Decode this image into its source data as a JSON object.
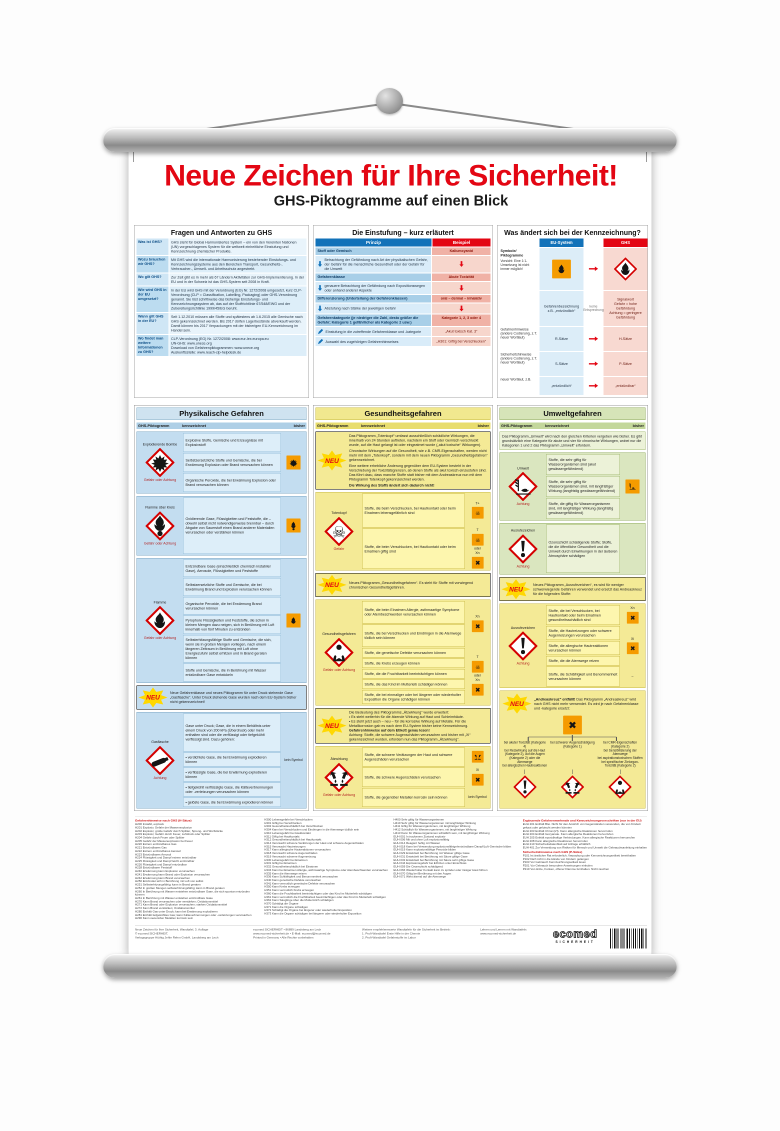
{
  "colors": {
    "accent_red": "#e30613",
    "eu_blue": "#1272b9",
    "old_symbol_orange": "#f59b00",
    "ghs_diamond_red": "#d40000",
    "neu_yellow": "#ffd800"
  },
  "poster": {
    "title": "Neue Zeichen für Ihre Sicherheit!",
    "subtitle": "GHS-Piktogramme auf einen Blick"
  },
  "heads": {
    "picto": "GHS-Piktogramm",
    "kenn": "kennzeichnet",
    "bisher": "bisher"
  },
  "faq": {
    "title": "Fragen und Antworten zu GHS",
    "rows": [
      {
        "q": "Was ist GHS?",
        "a": "GHS steht für Global Harmonisiertes System – ein von den Vereinten Nationen (UN) vorgeschlagenes System für die weltweit einheitliche Einstufung und Kennzeichnung chemischer Produkte."
      },
      {
        "q": "Wozu brauchen wir GHS?",
        "a": "Mit GHS wird die internationale Harmonisierung bestehender Einstufungs- und Kennzeichnungssysteme aus den Bereichen Transport, Gesundheits-, Verbraucher-, Umwelt- und Arbeitsschutz angestrebt."
      },
      {
        "q": "Wo gilt GHS?",
        "a": "Zur Zeit gibt es in mehr als 67 Ländern Aktivitäten zur GHS-Implementierung. In der EU und in der Schweiz ist das GHS-System seit 2008 in Kraft."
      },
      {
        "q": "Wie wird GHS in der EU umgesetzt?",
        "a": "In der EU wird GHS mit der Verordnung (EG) Nr. 1272/2008 umgesetzt, kurz CLP-Verordnung (CLP = Classification, Labelling, Packaging) oder GHS-Verordnung genannt. Sie löst schrittweise das bisherige Einstufungs- und Kennzeichnungssystem ab, das auf der Stoffrichtlinie 67/548/EWG und der Zubereitungsrichtlinie 1999/45/EG beruht."
      },
      {
        "q": "Wann gilt GHS in der EU?",
        "a": "Seit 1.12.2010 müssen alle Stoffe und spätestens ab 1.6.2015 alle Gemische nach GHS gekennzeichnet werden. Bis 2017 dürfen Lagerbestände abverkauft werden. Damit können bis 2017 Verpackungen mit der bisherigen EU-Kennzeichnung im Handel sein."
      },
      {
        "q": "Wo findet man weitere Informationen zu GHS?",
        "a": "CLP-Verordnung (EG) Nr. 1272/2008: www.eur-lex.europa.eu\nUN-GHS: www.unece.org\nDownload von Gefahrenpiktogrammen: www.unece.org\nAuskunftsstelle: www.reach-clp-helpdesk.de"
      }
    ]
  },
  "einstufung": {
    "title": "Die Einstufung – kurz erläutert",
    "col_p": "Prinzip",
    "col_b": "Beispiel",
    "r1l": "Stoff oder Gemisch",
    "r1r": "Kaliumcyanid",
    "r2l": "Betrachtung der Gefährdung nach Art der physikalischen Gefahr, der Gefahr für die menschliche Gesundheit oder der Gefahr für die Umwelt",
    "r3l": "Gefahrenklasse",
    "r3r": "Akute Toxizität",
    "r4l": "genauere Betrachtung der Gefährdung nach Expositionswegen oder anhand anderer Aspekte",
    "r5l": "Differenzierung (Unterteilung der Gefahrenklassen)",
    "r5r": "oral – dermal – inhalativ",
    "r6l": "Abstufung nach Stärke der jeweiligen Gefahr",
    "r7l": "Gefahrenkategorie (je niedriger die Zahl, desto größer die Gefahr; Kategorie 1 gefährlicher als Kategorie 2 usw.)",
    "r7r": "Kategorie 1, 2, 3 oder 4",
    "r8l": "Einstufung in die zutreffende Gefahrenklasse und -kategorie",
    "r8r": "„Akut toxisch Kat. 3“",
    "r9l": "Auswahl des zugehörigen Gefahrenhinweises",
    "r9r": "„H301: Giftig bei Verschlucken“"
  },
  "kennzeichnung": {
    "title": "Was ändert sich bei der Kennzeichnung?",
    "col_eu": "EU-System",
    "col_ghs": "GHS",
    "r1_label": "Symbole/\nPiktogramme",
    "r1_note": "Vorsicht: Eine 1:1-Umsetzung ist nicht immer möglich!",
    "r2_eu": "Gefahrenbezeichnung z.B. „entzündlich“",
    "r2_mid": "keine Entsprechung",
    "r2_ghs": "Signalwort\nGefahr = hohe Gefährdung\nAchtung = geringere Gefährdung",
    "r3_label": "Gefahrenhinweise (andere Codierung, z.T. neuer Wortlaut)",
    "r3_eu": "R-Sätze",
    "r3_ghs": "H-Sätze",
    "r4_label": "Sicherheitshinweise (andere Codierung, z.T. neuer Wortlaut)",
    "r4_eu": "S-Sätze",
    "r4_ghs": "P-Sätze",
    "r5_label": "neuer Wortlaut, z.B.",
    "r5_eu": "„entzündlich“",
    "r5_ghs": "„entzündbar“"
  },
  "phys": {
    "title": "Physikalische Gefahren",
    "b1": {
      "name": "Explodierende Bombe",
      "signal": "Gefahr oder Achtung",
      "rows": [
        "Explosive Stoffe, Gemische und Erzeugnisse mit Explosivstoff",
        "Selbstzersetzliche Stoffe und Gemische, die bei Erwärmung Explosion oder Brand verursachen können",
        "Organische Peroxide, die bei Erwärmung Explosion oder Brand verursachen können"
      ]
    },
    "b2": {
      "name": "Flamme über Kreis",
      "signal": "Gefahr oder Achtung",
      "rows": [
        "Oxidierende Gase, Flüssigkeiten und Feststoffe, die – obwohl selbst nicht notwendigerweise brennbar – durch Abgabe von Sauerstoff einen Brand anderer Materialien verursachen oder verstärken können"
      ]
    },
    "b3": {
      "name": "Flamme",
      "signal": "Gefahr oder Achtung",
      "rows": [
        "Entzündbare Gase (einschließlich chemisch instabiler Gase), Aerosole, Flüssigkeiten und Feststoffe",
        "Selbstzersetzliche Stoffe und Gemische, die bei Erwärmung Brand und Explosion verursachen können",
        "Organische Peroxide, die bei Erwärmung Brand verursachen können",
        "Pyrophore Flüssigkeiten und Feststoffe, die schon in kleinen Mengen dazu neigen, sich in Berührung mit Luft innerhalb von fünf Minuten zu entzünden",
        "Selbsterhitzungsfähige Stoffe und Gemische, die sich, wenn sie in großen Mengen vorliegen, nach einem längeren Zeitraum in Berührung mit Luft ohne Energiezufuhr selbst erhitzen und in Brand geraten können",
        "Stoffe und Gemische, die in Berührung mit Wasser entzündbare Gase entwickeln"
      ]
    },
    "neu": "Neue Gefahrenklasse und neues Piktogramm für unter Druck stehende Gase „Gasflasche“. Unter Druck stehende Gase wurden nach dem EU-System bisher nicht gekennzeichnet!",
    "b4": {
      "name": "Gasflasche",
      "signal": "Achtung",
      "intro": "Gase unter Druck; Gase, die in einem Behältnis unter einem Druck von 200 kPa (Überdruck) oder mehr enthalten sind oder die verflüssigt oder tiefgekühlt verflüssigt sind. Dazu gehören:",
      "rows": [
        "• verdichtete Gase, die bei Erwärmung explodieren können",
        "• verflüssigte Gase, die bei Erwärmung explodieren können",
        "• tiefgekühlt verflüssigte Gase, die Kälteverbrennungen oder -verletzungen verursachen können",
        "• gelöste Gase, die bei Erwärmung explodieren können"
      ],
      "bisher": "kein Symbol"
    }
  },
  "health": {
    "title": "Gesundheitsgefahren",
    "neu1": {
      "lines": [
        "Das Piktogramm „Totenkopf“ umfasst ausschließlich schädliche Wirkungen, die innerhalb von 24 Stunden auftreten, nachdem ein Stoff oder Gemisch verschluckt wurde, auf die Haut gelangt ist oder eingeatmet wurde („akut toxische“ Wirkungen).",
        "Chronische Wirkungen auf die Gesundheit, wie z.B. CMR-Eigenschaften, werden nicht mehr mit dem „Totenkopf“, sondern mit dem neuen Piktogramm „Gesundheitsgefahren“ gekennzeichnet.",
        "Eine weitere erhebliche Änderung gegenüber dem EU-System besteht in der Verschiebung der Toxizitätsgrenzen, ab denen Stoffe als akut toxisch einzustufen sind. Das führt dazu, dass manche Stoffe statt bisher mit dem Andreaskreuz nun mit dem Piktogramm Totenkopf gekennzeichnet werden."
      ],
      "bold": "Die Wirkung des Stoffs ändert sich dadurch nicht!"
    },
    "skull": {
      "name": "Totenkopf",
      "signal": "Gefahr",
      "r1": "Stoffe, die beim Verschlucken, bei Hautkontakt oder beim Einatmen lebensgefährlich sind",
      "r1_old": "T+",
      "r2": "Stoffe, die beim Verschlucken, bei Hautkontakt oder beim Einatmen giftig sind",
      "r2_old1": "T",
      "r2_oder": "oder",
      "r2_old2": "Xn"
    },
    "neu2": "Neues Piktogramm „Gesundheitsgefahren“. Es steht für Stoffe mit vorwiegend chronischen Gesundheitsgefahren.",
    "main": {
      "name": "Gesundheitsgefahren",
      "signal": "Gefahr oder Achtung",
      "rows1": [
        "Stoffe, die beim Einatmen Allergie, asthmaartige Symptome oder Atembeschwerden verursachen können",
        "Stoffe, die bei Verschlucken und Eindringen in die Atemwege tödlich sein können"
      ],
      "old1": "Xn",
      "rows2": [
        "Stoffe, die genetische Defekte verursachen können",
        "Stoffe, die Krebs erzeugen können",
        "Stoffe, die die Fruchtbarkeit beeinträchtigen können",
        "Stoffe, die das Kind im Mutterleib schädigen können",
        "Stoffe, die bei einmaliger oder bei längerer oder wiederholter Exposition die Organe schädigen können"
      ],
      "old2a": "T",
      "oder": "oder",
      "old2b": "Xn"
    },
    "neu3": {
      "l1": "Die Bedeutung des Piktogramms „Ätzwirkung“ wurde erweitert:",
      "l2": "• Es steht weiterhin für die ätzende Wirkung auf Haut und Schleimhäute.",
      "l3": "• Es steht jetzt auch – neu – für die korrosive Wirkung auf Metalle. Für die Metallkorrosion gab es nach dem EU-System bisher keine Kennzeichnung.",
      "bold": "Gefahrenhinweise auf dem Etikett genau lesen!",
      "l4": "Achtung: Stoffe, die schwere Augenschäden verursachen und bisher mit „Xi“ gekennzeichnet wurden, erfordern nun das Piktogramm „Ätzwirkung“."
    },
    "corr": {
      "name": "Ätzwirkung",
      "signal": "Gefahr oder Achtung",
      "r1": "Stoffe, die schwere Verätzungen der Haut und schwere Augenschäden verursachen",
      "r2": "Stoffe, die schwere Augenschäden verursachen",
      "r2_old": "Xi",
      "r3": "Stoffe, die gegenüber Metallen korrosiv sein können",
      "r3_old": "kein Symbol"
    }
  },
  "env": {
    "title": "Umweltgefahren",
    "intro": "Das Piktogramm „Umwelt“ wird nach den gleichen Kriterien vergeben wie bisher. Es gibt grundsätzlich eine Kategorie für akute und vier für chronische Wirkungen, wobei nur die Kategorien 1 und 2 das Piktogramm „Umwelt“ erfordern.",
    "umwelt": {
      "name": "Umwelt",
      "signal": "Achtung",
      "rows": [
        "Stoffe, die sehr giftig für Wasserorganismen sind (akut gewässergefährdend)",
        "Stoffe, die sehr giftig für Wasserorganismen sind, mit langfristiger Wirkung (langfristig gewässergefährdend)",
        "Stoffe, die giftig für Wasserorganismen sind, mit langfristiger Wirkung (langfristig gewässergefährdend)"
      ]
    },
    "ozon": {
      "name": "Ausrufezeichen",
      "signal": "Achtung",
      "row": "Ozonschicht schädigende Stoffe; Stoffe, die die öffentliche Gesundheit und die Umwelt durch Einwirkungen in der äußeren Atmosphäre schädigen"
    },
    "neuA": "Neues Piktogramm „Ausrufezeichen“, es wird für weniger schwerwiegende Gefahren verwendet und ersetzt das Andreaskreuz für die folgenden Stoffe:",
    "exclam": {
      "name": "Ausrufezeichen",
      "signal": "Achtung",
      "r1": "Stoffe, die bei Verschlucken, bei Hautkontakt oder beim Einatmen gesundheitsschädlich sind",
      "r1_old": "Xn",
      "rows2": [
        "Stoffe, die Hautreizungen oder schwere Augenreizungen verursachen",
        "Stoffe, die allergische Hautreaktionen verursachen können",
        "Stoffe, die die Atemwege reizen"
      ],
      "r2_old": "Xi",
      "r3": "Stoffe, die Schläfrigkeit und Benommenheit verursachen können",
      "r3_old": "–"
    },
    "diag": {
      "intro1": "„Andreaskreuz“ entfällt!",
      "intro2": "Das Piktogramm „Andreaskreuz“ wird nach GHS nicht mehr verwendet. Es wird je nach Gefahrenklasse und -kategorie ersetzt:",
      "left": [
        "bei akuter Toxizität (Kategorie 4)",
        "bei Reizwirkung auf die Haut (Kategorie 2), auf die Augen (Kategorie 2) oder die Atemwege",
        "bei allergischen Hautreaktionen"
      ],
      "mid": [
        "bei schwerer Augenschädigung (Kategorie 1)"
      ],
      "right": [
        "bei CMR-Eigenschaften (Kategorie 2)",
        "bei Sensibilisierung der Atemwege",
        "bei aspirationstoxischen Stoffen",
        "bei spezifischer Zielorgan-Toxizität (Kategorie 2)"
      ]
    }
  },
  "fineprint": {
    "h1": "Gefahrenhinweise nach GHS (H-Sätze)",
    "c1": [
      "H200 Instabil, explosiv",
      "H201 Explosiv, Gefahr der Massenexplosion",
      "H202 Explosiv; große Gefahr durch Splitter, Spreng- und Wurfstücke",
      "H203 Explosiv; Gefahr durch Feuer, Luftdruck oder Splitter",
      "H204 Gefahr durch Feuer oder Splitter",
      "H205 Gefahr der Massenexplosion bei Feuer",
      "H220 Extrem entzündbares Gas",
      "H221 Entzündbares Gas",
      "H222 Extrem entzündbares Aerosol",
      "H223 Entzündbares Aerosol",
      "H224 Flüssigkeit und Dampf extrem entzündbar",
      "H225 Flüssigkeit und Dampf leicht entzündbar",
      "H226 Flüssigkeit und Dampf entzündbar",
      "H228 Entzündbarer Feststoff",
      "H240 Erwärmung kann Explosion verursachen",
      "H241 Erwärmung kann Brand oder Explosion verursachen",
      "H242 Erwärmung kann Brand verursachen",
      "H250 Entzündet sich in Berührung mit Luft von selbst",
      "H251 Selbsterhitzungsfähig; kann in Brand geraten",
      "H252 In großen Mengen selbsterhitzungsfähig; kann in Brand geraten",
      "H260 In Berührung mit Wasser entstehen entzündbare Gase, die sich spontan entzünden können",
      "H261 In Berührung mit Wasser entstehen entzündbare Gase",
      "H270 Kann Brand verursachen oder verstärken; Oxidationsmittel",
      "H271 Kann Brand oder Explosion verursachen; starkes Oxidationsmittel",
      "H272 Kann Brand verstärken; Oxidationsmittel",
      "H280 Enthält Gas unter Druck; kann bei Erwärmung explodieren",
      "H281 Enthält tiefgekühltes Gas; kann Kälteverbrennungen oder -verletzungen verursachen",
      "H290 Kann gegenüber Metallen korrosiv sein"
    ],
    "c2": [
      "H300 Lebensgefahr bei Verschlucken",
      "H301 Giftig bei Verschlucken",
      "H302 Gesundheitsschädlich bei Verschlucken",
      "H304 Kann bei Verschlucken und Eindringen in die Atemwege tödlich sein",
      "H310 Lebensgefahr bei Hautkontakt",
      "H311 Giftig bei Hautkontakt",
      "H312 Gesundheitsschädlich bei Hautkontakt",
      "H314 Verursacht schwere Verätzungen der Haut und schwere Augenschäden",
      "H315 Verursacht Hautreizungen",
      "H317 Kann allergische Hautreaktionen verursachen",
      "H318 Verursacht schwere Augenschäden",
      "H319 Verursacht schwere Augenreizung",
      "H330 Lebensgefahr bei Einatmen",
      "H331 Giftig bei Einatmen",
      "H332 Gesundheitsschädlich bei Einatmen",
      "H334 Kann bei Einatmen Allergie, asthmaartige Symptome oder Atembeschwerden verursachen",
      "H335 Kann die Atemwege reizen",
      "H336 Kann Schläfrigkeit und Benommenheit verursachen",
      "H340 Kann genetische Defekte verursachen",
      "H341 Kann vermutlich genetische Defekte verursachen",
      "H350 Kann Krebs erzeugen",
      "H351 Kann vermutlich Krebs erzeugen",
      "H360 Kann die Fruchtbarkeit beeinträchtigen oder das Kind im Mutterleib schädigen",
      "H361 Kann vermutlich die Fruchtbarkeit beeinträchtigen oder das Kind im Mutterleib schädigen",
      "H362 Kann Säuglinge über die Muttermilch schädigen",
      "H370 Schädigt die Organe",
      "H371 Kann die Organe schädigen",
      "H372 Schädigt die Organe bei längerer oder wiederholter Exposition",
      "H373 Kann die Organe schädigen bei längerer oder wiederholter Exposition"
    ],
    "c3": [
      "H400 Sehr giftig für Wasserorganismen",
      "H410 Sehr giftig für Wasserorganismen mit langfristiger Wirkung",
      "H411 Giftig für Wasserorganismen, mit langfristiger Wirkung",
      "H412 Schädlich für Wasserorganismen, mit langfristiger Wirkung",
      "H413 Kann für Wasserorganismen schädlich sein, mit langfristiger Wirkung",
      "EUH 001 In trockenem Zustand explosiv",
      "EUH 006 Mit und ohne Luft explosionsfähig",
      "EUH 014 Reagiert heftig mit Wasser",
      "EUH 018 Kann bei Verwendung explosionsfähige/entzündbare Dampf/Luft-Gemische bilden",
      "EUH 019 Kann explosionsfähige Peroxide bilden",
      "EUH 029 Entwickelt bei Berührung mit Wasser giftige Gase",
      "EUH 031 Entwickelt bei Berührung mit Säure giftige Gase",
      "EUH 032 Entwickelt bei Berührung mit Säure sehr giftige Gase",
      "EUH 044 Explosionsgefahr bei Erhitzen unter Einschluss",
      "EUH 059 Die Ozonschicht schädigend",
      "EUH 066 Wiederholter Kontakt kann zu spröder oder rissiger Haut führen",
      "EUH 070 Giftig bei Berührung mit den Augen",
      "EUH 071 Wirkt ätzend auf die Atemwege"
    ],
    "h4a": "Ergänzende Gefahrenmerkmale und Kennzeichnungsvorschriften (nur in der EU)",
    "c4a": [
      "EUH 201 Enthält Blei. Nicht für den Anstrich von Gegenständen verwenden, die von Kindern gekaut oder gelutscht werden könnten",
      "EUH 203 Enthält Chrom(VI). Kann allergische Reaktionen hervorrufen",
      "EUH 204 Enthält Isocyanate. Kann allergische Reaktionen hervorrufen",
      "EUH 205 Enthält epoxidhaltige Verbindungen. Kann allergische Reaktionen hervorrufen",
      "EUH 208 Kann allergische Reaktionen hervorrufen",
      "EUH 210 Sicherheitsdatenblatt auf Anfrage erhältlich",
      "EUH 401 Zur Vermeidung von Risiken für Mensch und Umwelt die Gebrauchsanleitung einhalten"
    ],
    "h4b": "Sicherheitshinweise nach GHS (P-Sätze)",
    "c4b": [
      "P101 Ist ärztlicher Rat erforderlich, Verpackung oder Kennzeichnungsetikett bereithalten",
      "P102 Darf nicht in die Hände von Kindern gelangen",
      "P103 Vor Gebrauch Kennzeichnungsetikett lesen",
      "P201 Vor Gebrauch besondere Anweisungen einholen",
      "P210 Von Hitze, Funken, offener Flamme fernhalten. Nicht rauchen"
    ]
  },
  "footer": {
    "col1": "Neue Zeichen für Ihre Sicherheit, Wandtafel, 3. Auflage\n© ecomed SICHERHEIT,\nVerlagsgruppe Hüthig Jehle Rehm GmbH, Landsberg am Lech",
    "col2": "ecomed SICHERHEIT • 86899 Landsberg am Lech\nwww.ecomed-sicherheit.de • E-Mail: ecomed@ecomed.de\nPrinted in Germany • Alle Rechte vorbehalten",
    "col3": "Weitere empfehlenswerte Wandtafeln für die Sicherheit im Betrieb:\n1. Profi-Wandtafel Erste Hilfe in der Chemie\n2. Profi-Wandtafel Gefahrstoffe im Labor",
    "col4": "Lehren und Lernen mit Wandtafeln:\nwww.ecomed-sicherheit.de",
    "logo_top": "ecomed",
    "logo_bottom": "SICHERHEIT"
  }
}
